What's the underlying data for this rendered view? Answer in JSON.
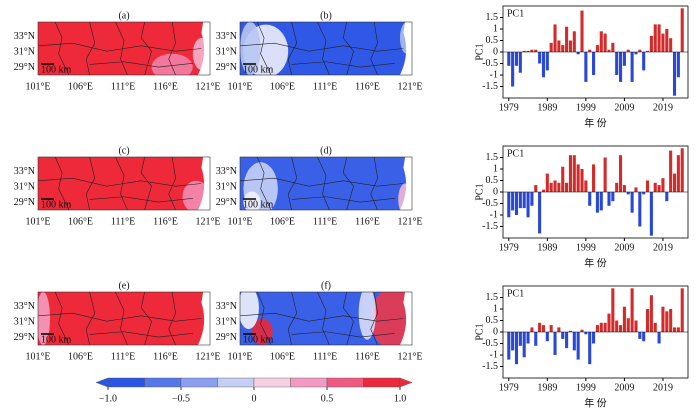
{
  "maps": {
    "panels": [
      "(a)",
      "(b)",
      "(c)",
      "(d)",
      "(e)",
      "(f)"
    ],
    "lat_labels": [
      "33°N",
      "31°N",
      "29°N"
    ],
    "lon_labels": [
      "101°E",
      "106°E",
      "111°E",
      "116°E",
      "121°E"
    ],
    "scale": "100 km"
  },
  "colorbar": {
    "range": [
      -1,
      1
    ],
    "ticks": [
      {
        "value": -1,
        "label": "−1.0"
      },
      {
        "value": -0.5,
        "label": "−0.5"
      },
      0,
      0.5,
      {
        "value": 1,
        "label": "1.0"
      }
    ],
    "colors": [
      "#2a55e8",
      "#5577ea",
      "#8a9ff0",
      "#c5cff6",
      "#f7d0e2",
      "#f29ac2",
      "#ee5a80",
      "#ea2a3a"
    ]
  },
  "chart_data": [
    {
      "type": "bar",
      "label": "PC1",
      "ylabel": "PC1",
      "xlabel": "年 份",
      "x": [
        1979,
        1980,
        1981,
        1982,
        1983,
        1984,
        1985,
        1986,
        1987,
        1988,
        1989,
        1990,
        1991,
        1992,
        1993,
        1994,
        1995,
        1996,
        1997,
        1998,
        1999,
        2000,
        2001,
        2002,
        2003,
        2004,
        2005,
        2006,
        2007,
        2008,
        2009,
        2010,
        2011,
        2012,
        2013,
        2014,
        2015,
        2016,
        2017,
        2018,
        2019,
        2020,
        2021,
        2022,
        2023,
        2024
      ],
      "values": [
        -0.6,
        -1.5,
        -0.6,
        -0.9,
        0.05,
        0.05,
        0.1,
        0.1,
        -0.5,
        -1.1,
        -0.8,
        0.4,
        1.2,
        0.5,
        0.3,
        1.1,
        0.5,
        0.9,
        -0.1,
        1.8,
        -1.3,
        0.1,
        -1.0,
        0.3,
        0.9,
        0.8,
        0.1,
        0.4,
        -1.0,
        -1.3,
        -0.6,
        0.1,
        -1.3,
        -0.1,
        0.1,
        -0.8,
        0.05,
        0.7,
        1.2,
        1.2,
        0.8,
        1.0,
        0.6,
        -1.9,
        -1.1,
        1.9
      ],
      "colors": {
        "positive": "#d42a2a",
        "negative": "#2a48d8"
      },
      "xlim": [
        1977.5,
        2025.5
      ],
      "xticks": [
        1979,
        1989,
        1999,
        2009,
        2019
      ],
      "ylim": [
        -2,
        2
      ],
      "yticks": [
        -1.5,
        -1,
        -0.5,
        0,
        0.5,
        1,
        1.5
      ]
    },
    {
      "type": "bar",
      "label": "PC1",
      "ylabel": "PC1",
      "xlabel": "年 份",
      "x": [
        1979,
        1980,
        1981,
        1982,
        1983,
        1984,
        1985,
        1986,
        1987,
        1988,
        1989,
        1990,
        1991,
        1992,
        1993,
        1994,
        1995,
        1996,
        1997,
        1998,
        1999,
        2000,
        2001,
        2002,
        2003,
        2004,
        2005,
        2006,
        2007,
        2008,
        2009,
        2010,
        2011,
        2012,
        2013,
        2014,
        2015,
        2016,
        2017,
        2018,
        2019,
        2020,
        2021,
        2022,
        2023,
        2024
      ],
      "values": [
        -1.1,
        -0.8,
        -1.0,
        -0.7,
        -0.7,
        -1.1,
        -0.6,
        0.3,
        -1.8,
        0.1,
        0.8,
        0.4,
        0.5,
        0.4,
        1.1,
        0.4,
        1.6,
        1.6,
        1.2,
        1.0,
        0.5,
        -0.6,
        1.2,
        -0.9,
        -0.8,
        1.5,
        -0.6,
        -0.4,
        0.4,
        1.6,
        0.3,
        -0.1,
        -0.9,
        0.2,
        -1.5,
        -0.1,
        0.5,
        -1.9,
        0.4,
        0.3,
        0.6,
        -0.4,
        1.8,
        0.8,
        1.6,
        1.9
      ],
      "colors": {
        "positive": "#d42a2a",
        "negative": "#2a48d8"
      },
      "xlim": [
        1977.5,
        2025.5
      ],
      "xticks": [
        1979,
        1989,
        1999,
        2009,
        2019
      ],
      "ylim": [
        -2,
        2
      ],
      "yticks": [
        -1.5,
        -1,
        -0.5,
        0,
        0.5,
        1,
        1.5
      ]
    },
    {
      "type": "bar",
      "label": "PC1",
      "ylabel": "PC1",
      "xlabel": "年 份",
      "x": [
        1979,
        1980,
        1981,
        1982,
        1983,
        1984,
        1985,
        1986,
        1987,
        1988,
        1989,
        1990,
        1991,
        1992,
        1993,
        1994,
        1995,
        1996,
        1997,
        1998,
        1999,
        2000,
        2001,
        2002,
        2003,
        2004,
        2005,
        2006,
        2007,
        2008,
        2009,
        2010,
        2011,
        2012,
        2013,
        2014,
        2015,
        2016,
        2017,
        2018,
        2019,
        2020,
        2021,
        2022,
        2023,
        2024
      ],
      "values": [
        -1.2,
        -0.8,
        -1.4,
        -0.6,
        -1.1,
        -0.5,
        0.2,
        -0.6,
        0.4,
        0.3,
        -0.4,
        0.3,
        -1.0,
        0.2,
        -0.3,
        -0.7,
        0.05,
        -0.8,
        -1.2,
        0.1,
        -0.1,
        -1.4,
        -0.5,
        0.3,
        0.4,
        0.4,
        0.8,
        1.9,
        0.5,
        0.3,
        1.1,
        0.6,
        1.9,
        0.5,
        -0.3,
        -0.4,
        1.0,
        1.6,
        0.4,
        -0.5,
        1.1,
        0.9,
        1.0,
        0.2,
        0.2,
        1.9
      ],
      "colors": {
        "positive": "#d42a2a",
        "negative": "#2a48d8"
      },
      "xlim": [
        1977.5,
        2025.5
      ],
      "xticks": [
        1979,
        1989,
        1999,
        2009,
        2019
      ],
      "ylim": [
        -2,
        2
      ],
      "yticks": [
        -1.5,
        -1,
        -0.5,
        0,
        0.5,
        1,
        1.5
      ]
    }
  ]
}
